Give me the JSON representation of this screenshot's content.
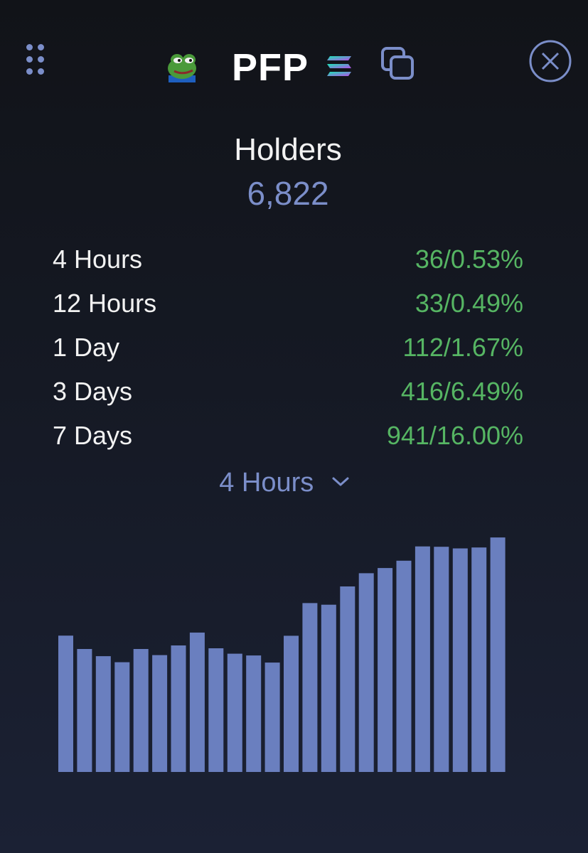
{
  "header": {
    "title": "PFP",
    "token_avatar_icon": "pepe-frog-icon",
    "chain_icon": "solana-icon",
    "copy_icon": "copy-icon",
    "close_icon": "close-icon",
    "menu_icon": "grip-dots-icon"
  },
  "holders": {
    "label": "Holders",
    "value": "6,822"
  },
  "stats": [
    {
      "label": "4 Hours",
      "value": "36/0.53%"
    },
    {
      "label": "12 Hours",
      "value": "33/0.49%"
    },
    {
      "label": "1 Day",
      "value": "112/1.67%"
    },
    {
      "label": "3 Days",
      "value": "416/6.49%"
    },
    {
      "label": "7 Days",
      "value": "941/16.00%"
    }
  ],
  "period_select": {
    "selected": "4 Hours"
  },
  "colors": {
    "accent": "#7b8ec9",
    "positive": "#56b563",
    "bar": "#6a7fbf",
    "background_top": "#111318",
    "background_bottom": "#1b2134"
  },
  "chart_data": {
    "type": "bar",
    "values": [
      6463,
      6388,
      6348,
      6314,
      6388,
      6354,
      6408,
      6480,
      6392,
      6362,
      6352,
      6312,
      6462,
      6645,
      6636,
      6738,
      6812,
      6841,
      6882,
      6962,
      6960,
      6951,
      6956,
      7012
    ],
    "ylim": [
      5700,
      7100
    ],
    "grid": false,
    "legend": "none"
  }
}
